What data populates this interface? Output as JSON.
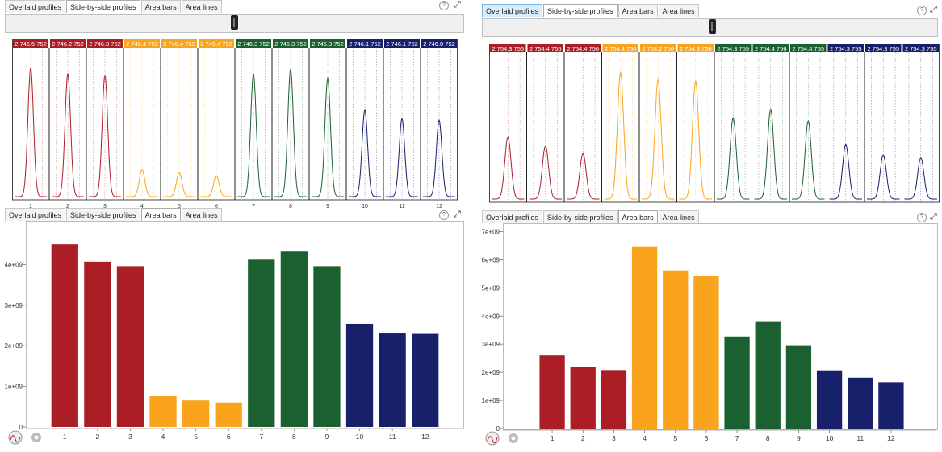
{
  "tab_labels": {
    "overlaid": "Overlaid profiles",
    "side": "Side-by-side profiles",
    "bars": "Area bars",
    "lines": "Area lines"
  },
  "icons": {
    "help": "?",
    "expand": "⤢",
    "profile_tool": "profile-icon",
    "settings": "gear-icon"
  },
  "colors": {
    "red": "#ab1e26",
    "orange": "#f9a41c",
    "green": "#1a6030",
    "blue": "#18206a"
  },
  "left": {
    "profiles": {
      "header_labels": [
        "2 746.5 752",
        "2 746.2 752",
        "2 746.3 752",
        "2 745.4 752",
        "2 745.4 752",
        "2 745.4 752",
        "2 746.3 752",
        "2 746.3 752",
        "2 746.3 752",
        "2 746.1 752",
        "2 746.1 752",
        "2 746.0 752"
      ],
      "peak_heights": [
        0.86,
        0.82,
        0.81,
        0.18,
        0.16,
        0.14,
        0.82,
        0.85,
        0.79,
        0.58,
        0.52,
        0.51
      ],
      "peak_width": 0.18,
      "bottom_labels": [
        "1",
        "2",
        "3",
        "4",
        "5",
        "6",
        "7",
        "8",
        "9",
        "10",
        "11",
        "12"
      ]
    },
    "chart_data": {
      "type": "bar",
      "categories": [
        "1",
        "2",
        "3",
        "4",
        "5",
        "6",
        "7",
        "8",
        "9",
        "10",
        "11",
        "12"
      ],
      "values": [
        4500000000,
        4070000000,
        3960000000,
        760000000,
        650000000,
        600000000,
        4120000000,
        4320000000,
        3960000000,
        2540000000,
        2320000000,
        2310000000
      ],
      "ylim": [
        0,
        4900000000
      ],
      "yticks": [
        0,
        1000000000,
        2000000000,
        3000000000,
        4000000000
      ],
      "ytick_labels": [
        "0",
        "1e+09",
        "2e+09",
        "3e+09",
        "4e+09"
      ],
      "title": "",
      "xlabel": "",
      "ylabel": ""
    }
  },
  "right": {
    "profiles": {
      "header_labels": [
        "2 754.3 756",
        "2 754.4 755",
        "2 754.4 756",
        "2 754.4 756",
        "2 754.2 756",
        "2 754.3 756",
        "2 754.3 755",
        "2 754.4 756",
        "2 754.4 755",
        "2 754.3 755",
        "2 754.3 755",
        "2 754.3 755"
      ],
      "peak_heights": [
        0.42,
        0.36,
        0.31,
        0.86,
        0.81,
        0.8,
        0.55,
        0.61,
        0.53,
        0.37,
        0.3,
        0.28
      ],
      "peak_width": 0.2
    },
    "chart_data": {
      "type": "bar",
      "categories": [
        "1",
        "2",
        "3",
        "4",
        "5",
        "6",
        "7",
        "8",
        "9",
        "10",
        "11",
        "12"
      ],
      "values": [
        2600000000,
        2180000000,
        2080000000,
        6480000000,
        5620000000,
        5430000000,
        3270000000,
        3790000000,
        2960000000,
        2070000000,
        1810000000,
        1650000000
      ],
      "ylim": [
        0,
        7100000000
      ],
      "yticks": [
        0,
        1000000000,
        2000000000,
        3000000000,
        4000000000,
        5000000000,
        6000000000,
        7000000000
      ],
      "ytick_labels": [
        "0",
        "1e+09",
        "2e+09",
        "3e+09",
        "4e+09",
        "5e+09",
        "6e+09",
        "7e+09"
      ],
      "title": "",
      "xlabel": "",
      "ylabel": ""
    }
  }
}
